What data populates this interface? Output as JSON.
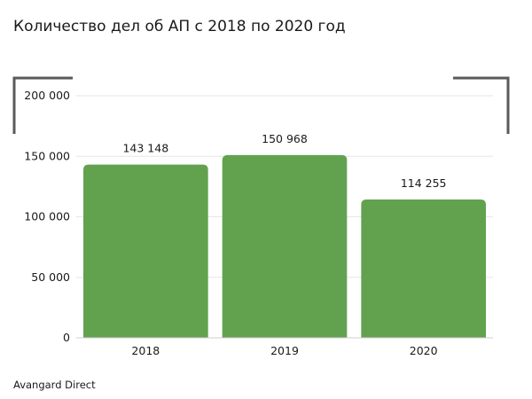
{
  "chart_data": {
    "type": "bar",
    "title": "Количество дел об АП с 2018 по 2020 год",
    "categories": [
      "2018",
      "2019",
      "2020"
    ],
    "values": [
      143148,
      150968,
      114255
    ],
    "value_labels": [
      "143 148",
      "150 968",
      "114 255"
    ],
    "yticks": [
      0,
      50000,
      100000,
      150000,
      200000
    ],
    "ytick_labels": [
      "0",
      "50 000",
      "100 000",
      "150 000",
      "200 000"
    ],
    "ylim": [
      0,
      200000
    ],
    "xlabel": "",
    "ylabel": "",
    "grid": true,
    "legend": "none",
    "bar_color": "#62a24f"
  },
  "source": "Avangard Direct"
}
